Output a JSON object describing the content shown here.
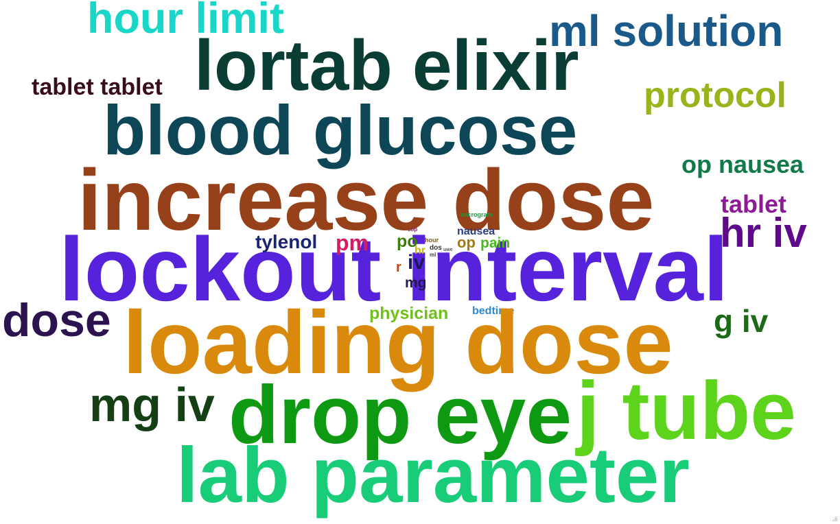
{
  "words": [
    {
      "text": "hour limit",
      "color": "#1ad6c8"
    },
    {
      "text": "ml solution",
      "color": "#1a5a8a"
    },
    {
      "text": "lortab elixir",
      "color": "#0a3e34"
    },
    {
      "text": "tablet tablet",
      "color": "#3a0d1d"
    },
    {
      "text": "protocol",
      "color": "#97b41c"
    },
    {
      "text": "blood glucose",
      "color": "#0d4656"
    },
    {
      "text": "op nausea",
      "color": "#127a48"
    },
    {
      "text": "increase dose",
      "color": "#964119"
    },
    {
      "text": "tablet",
      "color": "#8e1a96"
    },
    {
      "text": "hr iv",
      "color": "#5f0a8a"
    },
    {
      "text": "lockout interval",
      "color": "#5722dc"
    },
    {
      "text": "tylenol",
      "color": "#1a2572"
    },
    {
      "text": "pm",
      "color": "#d51c62"
    },
    {
      "text": "po",
      "color": "#3f7d0f"
    },
    {
      "text": "nausea",
      "color": "#2b3d80"
    },
    {
      "text": "op",
      "color": "#a47b0e"
    },
    {
      "text": "pain",
      "color": "#4ab71e"
    },
    {
      "text": "microgram",
      "color": "#1e9a3c"
    },
    {
      "text": "sbp",
      "color": "#8a2e6a"
    },
    {
      "text": "hour",
      "color": "#7a5a1a"
    },
    {
      "text": "hr",
      "color": "#c8b600"
    },
    {
      "text": "dos",
      "color": "#333333"
    },
    {
      "text": "uwe",
      "color": "#555555"
    },
    {
      "text": "ml",
      "color": "#444444"
    },
    {
      "text": "r",
      "color": "#b44a12"
    },
    {
      "text": "iv",
      "color": "#1a1a5a"
    },
    {
      "text": "mg",
      "color": "#221a4a"
    },
    {
      "text": "dose",
      "color": "#2d1250"
    },
    {
      "text": "physician",
      "color": "#6fc01a"
    },
    {
      "text": "bedtime",
      "color": "#2b8ad4"
    },
    {
      "text": "g iv",
      "color": "#1d6a18"
    },
    {
      "text": "loading dose",
      "color": "#d98a0c"
    },
    {
      "text": "mg iv",
      "color": "#154016"
    },
    {
      "text": "drop eye",
      "color": "#0d9a12"
    },
    {
      "text": "j tube",
      "color": "#5ed31c"
    },
    {
      "text": "lab parameter",
      "color": "#18cc78"
    }
  ]
}
